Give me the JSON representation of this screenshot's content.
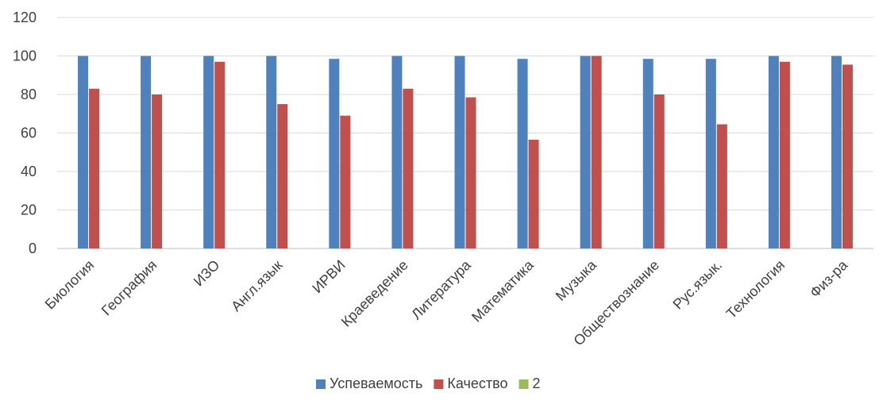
{
  "chart_data": {
    "type": "bar",
    "categories": [
      "Биология",
      "География",
      "ИЗО",
      "Англ.язык",
      "ИРВИ",
      "Краеведение",
      "Литература",
      "Математика",
      "Музыка",
      "Обществознание",
      "Рус.язык.",
      "Технология",
      "Физ-ра"
    ],
    "series": [
      {
        "name": "Успеваемость",
        "color": "#4F81BD",
        "values": [
          100,
          100,
          100,
          100,
          98.5,
          100,
          100,
          98.5,
          100,
          98.5,
          98.5,
          100,
          100
        ]
      },
      {
        "name": "Качество",
        "color": "#C0504D",
        "values": [
          83,
          80,
          97,
          75,
          69,
          83,
          78.5,
          56.5,
          100,
          80,
          64.5,
          97,
          95.5
        ]
      },
      {
        "name": "2",
        "color": "#9BBB59",
        "values": [
          0,
          0,
          0,
          0,
          0,
          0,
          0,
          0,
          0,
          0,
          0,
          0,
          0
        ]
      }
    ],
    "yticks": [
      "0",
      "20",
      "40",
      "60",
      "80",
      "100",
      "120"
    ],
    "ylim": [
      0,
      120
    ],
    "grid": true,
    "legend_position": "bottom",
    "title": "",
    "xlabel": "",
    "ylabel": ""
  }
}
